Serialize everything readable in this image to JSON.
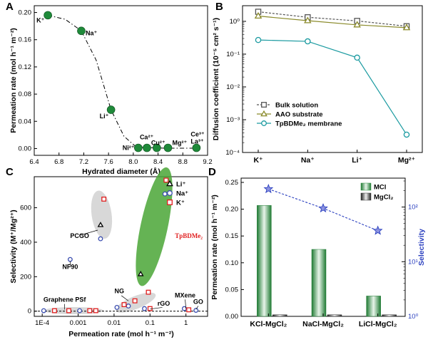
{
  "panel_labels": [
    "A",
    "B",
    "C",
    "D"
  ],
  "chart_data": [
    {
      "panel": "A",
      "type": "scatter",
      "xlabel": "Hydrated diameter (Å)",
      "ylabel": "Permeation rate (mol h⁻¹ m⁻²)",
      "xlim": [
        6.4,
        9.2
      ],
      "ylim": [
        -0.01,
        0.21
      ],
      "xticks": [
        "6.4",
        "6.8",
        "7.2",
        "7.6",
        "8.0",
        "8.4",
        "8.8",
        "9.2"
      ],
      "yticks": [
        "0.00",
        "0.04",
        "0.08",
        "0.12",
        "0.16",
        "0.20"
      ],
      "marker_color": "#1f8a3a",
      "points": [
        {
          "label": "K⁺",
          "x": 6.62,
          "y": 0.196
        },
        {
          "label": "Na⁺",
          "x": 7.16,
          "y": 0.173
        },
        {
          "label": "Li⁺",
          "x": 7.64,
          "y": 0.057
        },
        {
          "label": "Ni²⁺",
          "x": 8.08,
          "y": 0.001
        },
        {
          "label": "Ca²⁺",
          "x": 8.22,
          "y": 0.001
        },
        {
          "label": "Cu²⁺",
          "x": 8.38,
          "y": 0.001
        },
        {
          "label": "Mg²⁺",
          "x": 8.56,
          "y": 0.001
        },
        {
          "label": "Ce³⁺",
          "x": 9.02,
          "y": 0.001
        },
        {
          "label": "La³⁺",
          "x": 9.02,
          "y": 0.001
        }
      ],
      "trend_line": "dash-dot"
    },
    {
      "panel": "B",
      "type": "line",
      "ylabel": "Diffusion coefficient (10⁻⁵ cm² s⁻¹)",
      "yscale": "log",
      "ylim": [
        0.0001,
        3
      ],
      "yticks": [
        "10⁻⁴",
        "10⁻³",
        "10⁻²",
        "10⁻¹",
        "10⁰"
      ],
      "categories": [
        "K⁺",
        "Na⁺",
        "Li⁺",
        "Mg²⁺"
      ],
      "series": [
        {
          "name": "Bulk solution",
          "values": [
            1.96,
            1.33,
            1.03,
            0.71
          ],
          "color": "#555555",
          "marker": "square",
          "dash": true
        },
        {
          "name": "AAO substrate",
          "values": [
            1.45,
            1.05,
            0.78,
            0.64
          ],
          "color": "#8a8a2a",
          "marker": "triangle",
          "dash": false
        },
        {
          "name": "TpBDMe₂ membrane",
          "values": [
            0.27,
            0.245,
            0.078,
            0.00035
          ],
          "color": "#1a9aa0",
          "marker": "circle",
          "dash": false
        }
      ],
      "legend": "center-left"
    },
    {
      "panel": "C",
      "type": "scatter",
      "xlabel": "Permeation rate (mol h⁻¹ m⁻²)",
      "ylabel": "Selectivity (M⁺/Mg²⁺)",
      "xscale": "log",
      "xlim": [
        6e-05,
        4
      ],
      "ylim": [
        -30,
        780
      ],
      "xticks": [
        "1E-4",
        "0.001",
        "0.01",
        "0.1",
        "1"
      ],
      "yticks": [
        "0",
        "200",
        "400",
        "600"
      ],
      "legend": [
        "Li⁺",
        "Na⁺",
        "K⁺"
      ],
      "legend_position": "top-right",
      "series": [
        {
          "name": "Li⁺",
          "color": "#000000",
          "marker": "triangle",
          "points": [
            [
              0.0042,
              500
            ],
            [
              0.055,
              215
            ]
          ]
        },
        {
          "name": "Na⁺",
          "color": "#3c4fb0",
          "marker": "circle",
          "points": [
            [
              0.00011,
              3
            ],
            [
              0.0011,
              3
            ],
            [
              0.0006,
              300
            ],
            [
              0.0042,
              420
            ],
            [
              0.012,
              22
            ],
            [
              0.025,
              30
            ],
            [
              0.07,
              15
            ],
            [
              0.26,
              680
            ],
            [
              0.9,
              15
            ],
            [
              1.9,
              5
            ]
          ]
        },
        {
          "name": "K⁺",
          "color": "#e02020",
          "marker": "square",
          "points": [
            [
              0.00022,
              3
            ],
            [
              0.00055,
              3
            ],
            [
              0.0021,
              3
            ],
            [
              0.0031,
              3
            ],
            [
              0.0052,
              650
            ],
            [
              0.019,
              38
            ],
            [
              0.038,
              60
            ],
            [
              0.09,
              110
            ],
            [
              0.1,
              15
            ],
            [
              0.28,
              760
            ],
            [
              1.2,
              8
            ]
          ]
        }
      ],
      "annotations": [
        "PCGO",
        "NF90",
        "TpBDMe₂",
        "NG",
        "rGO",
        "Graphene PSf",
        "MXene",
        "GO"
      ],
      "highlight_color": "#4aa636"
    },
    {
      "panel": "D",
      "type": "bar",
      "categories": [
        "KCl-MgCl₂",
        "NaCl-MgCl₂",
        "LiCl-MgCl₂"
      ],
      "ylabel": "Permeation rate (mol h⁻¹ m⁻²)",
      "ylim": [
        0,
        0.25
      ],
      "yticks": [
        "0.00",
        "0.05",
        "0.10",
        "0.15",
        "0.20",
        "0.25"
      ],
      "series": [
        {
          "name": "MCl",
          "values": [
            0.207,
            0.125,
            0.038
          ],
          "color": "#2d8f3e"
        },
        {
          "name": "MgCl₂",
          "values": [
            0.001,
            0.001,
            0.001
          ],
          "color": "#333333"
        }
      ],
      "y2label": "Selectivity",
      "y2scale": "log",
      "y2lim": [
        1,
        300
      ],
      "y2ticks": [
        "10⁰",
        "10¹",
        "10²"
      ],
      "selectivity": [
        214,
        95,
        37
      ],
      "selectivity_color": "#2a3fbf",
      "legend": "top-right"
    }
  ]
}
